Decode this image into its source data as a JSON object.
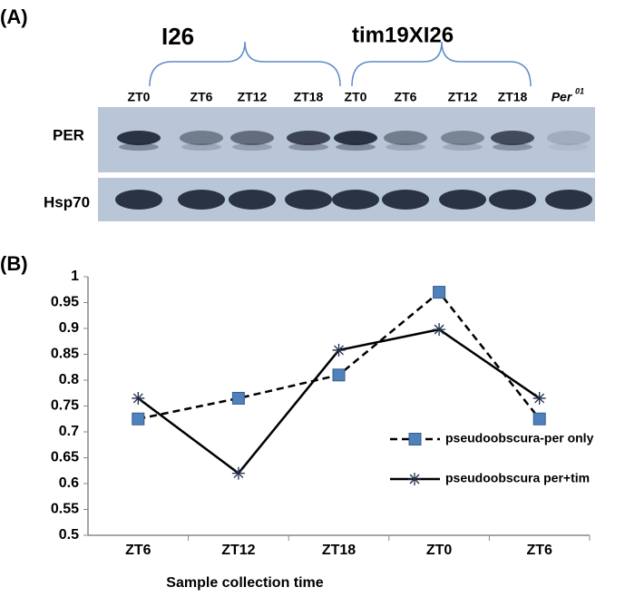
{
  "panel_a": {
    "label": "(A)",
    "groups": [
      "I26",
      "tim19XI26"
    ],
    "lanes": [
      "ZT0",
      "ZT6",
      "ZT12",
      "ZT18",
      "ZT0",
      "ZT6",
      "ZT12",
      "ZT18",
      "Per"
    ],
    "lane_superscript": "01",
    "rows": [
      "PER",
      "Hsp70"
    ]
  },
  "chart_data": {
    "type": "line",
    "panel_label": "(B)",
    "x_label": "Sample collection time",
    "categories": [
      "ZT6",
      "ZT12",
      "ZT18",
      "ZT0",
      "ZT6"
    ],
    "series": [
      {
        "name": "pseudoobscura-per only",
        "color": "#4f81bd",
        "line_color": "#000000",
        "dash": true,
        "marker": "square",
        "values": [
          0.725,
          0.765,
          0.81,
          0.97,
          0.725
        ]
      },
      {
        "name": "pseudoobscura per+tim",
        "color": "#1f2d4a",
        "line_color": "#000000",
        "dash": false,
        "marker": "asterisk",
        "values": [
          0.765,
          0.62,
          0.858,
          0.898,
          0.765
        ]
      }
    ],
    "ylim": [
      0.5,
      1
    ],
    "yticks": [
      0.5,
      0.55,
      0.6,
      0.65,
      0.7,
      0.75,
      0.8,
      0.85,
      0.9,
      0.95,
      1
    ],
    "grid": false,
    "legend": "right"
  }
}
